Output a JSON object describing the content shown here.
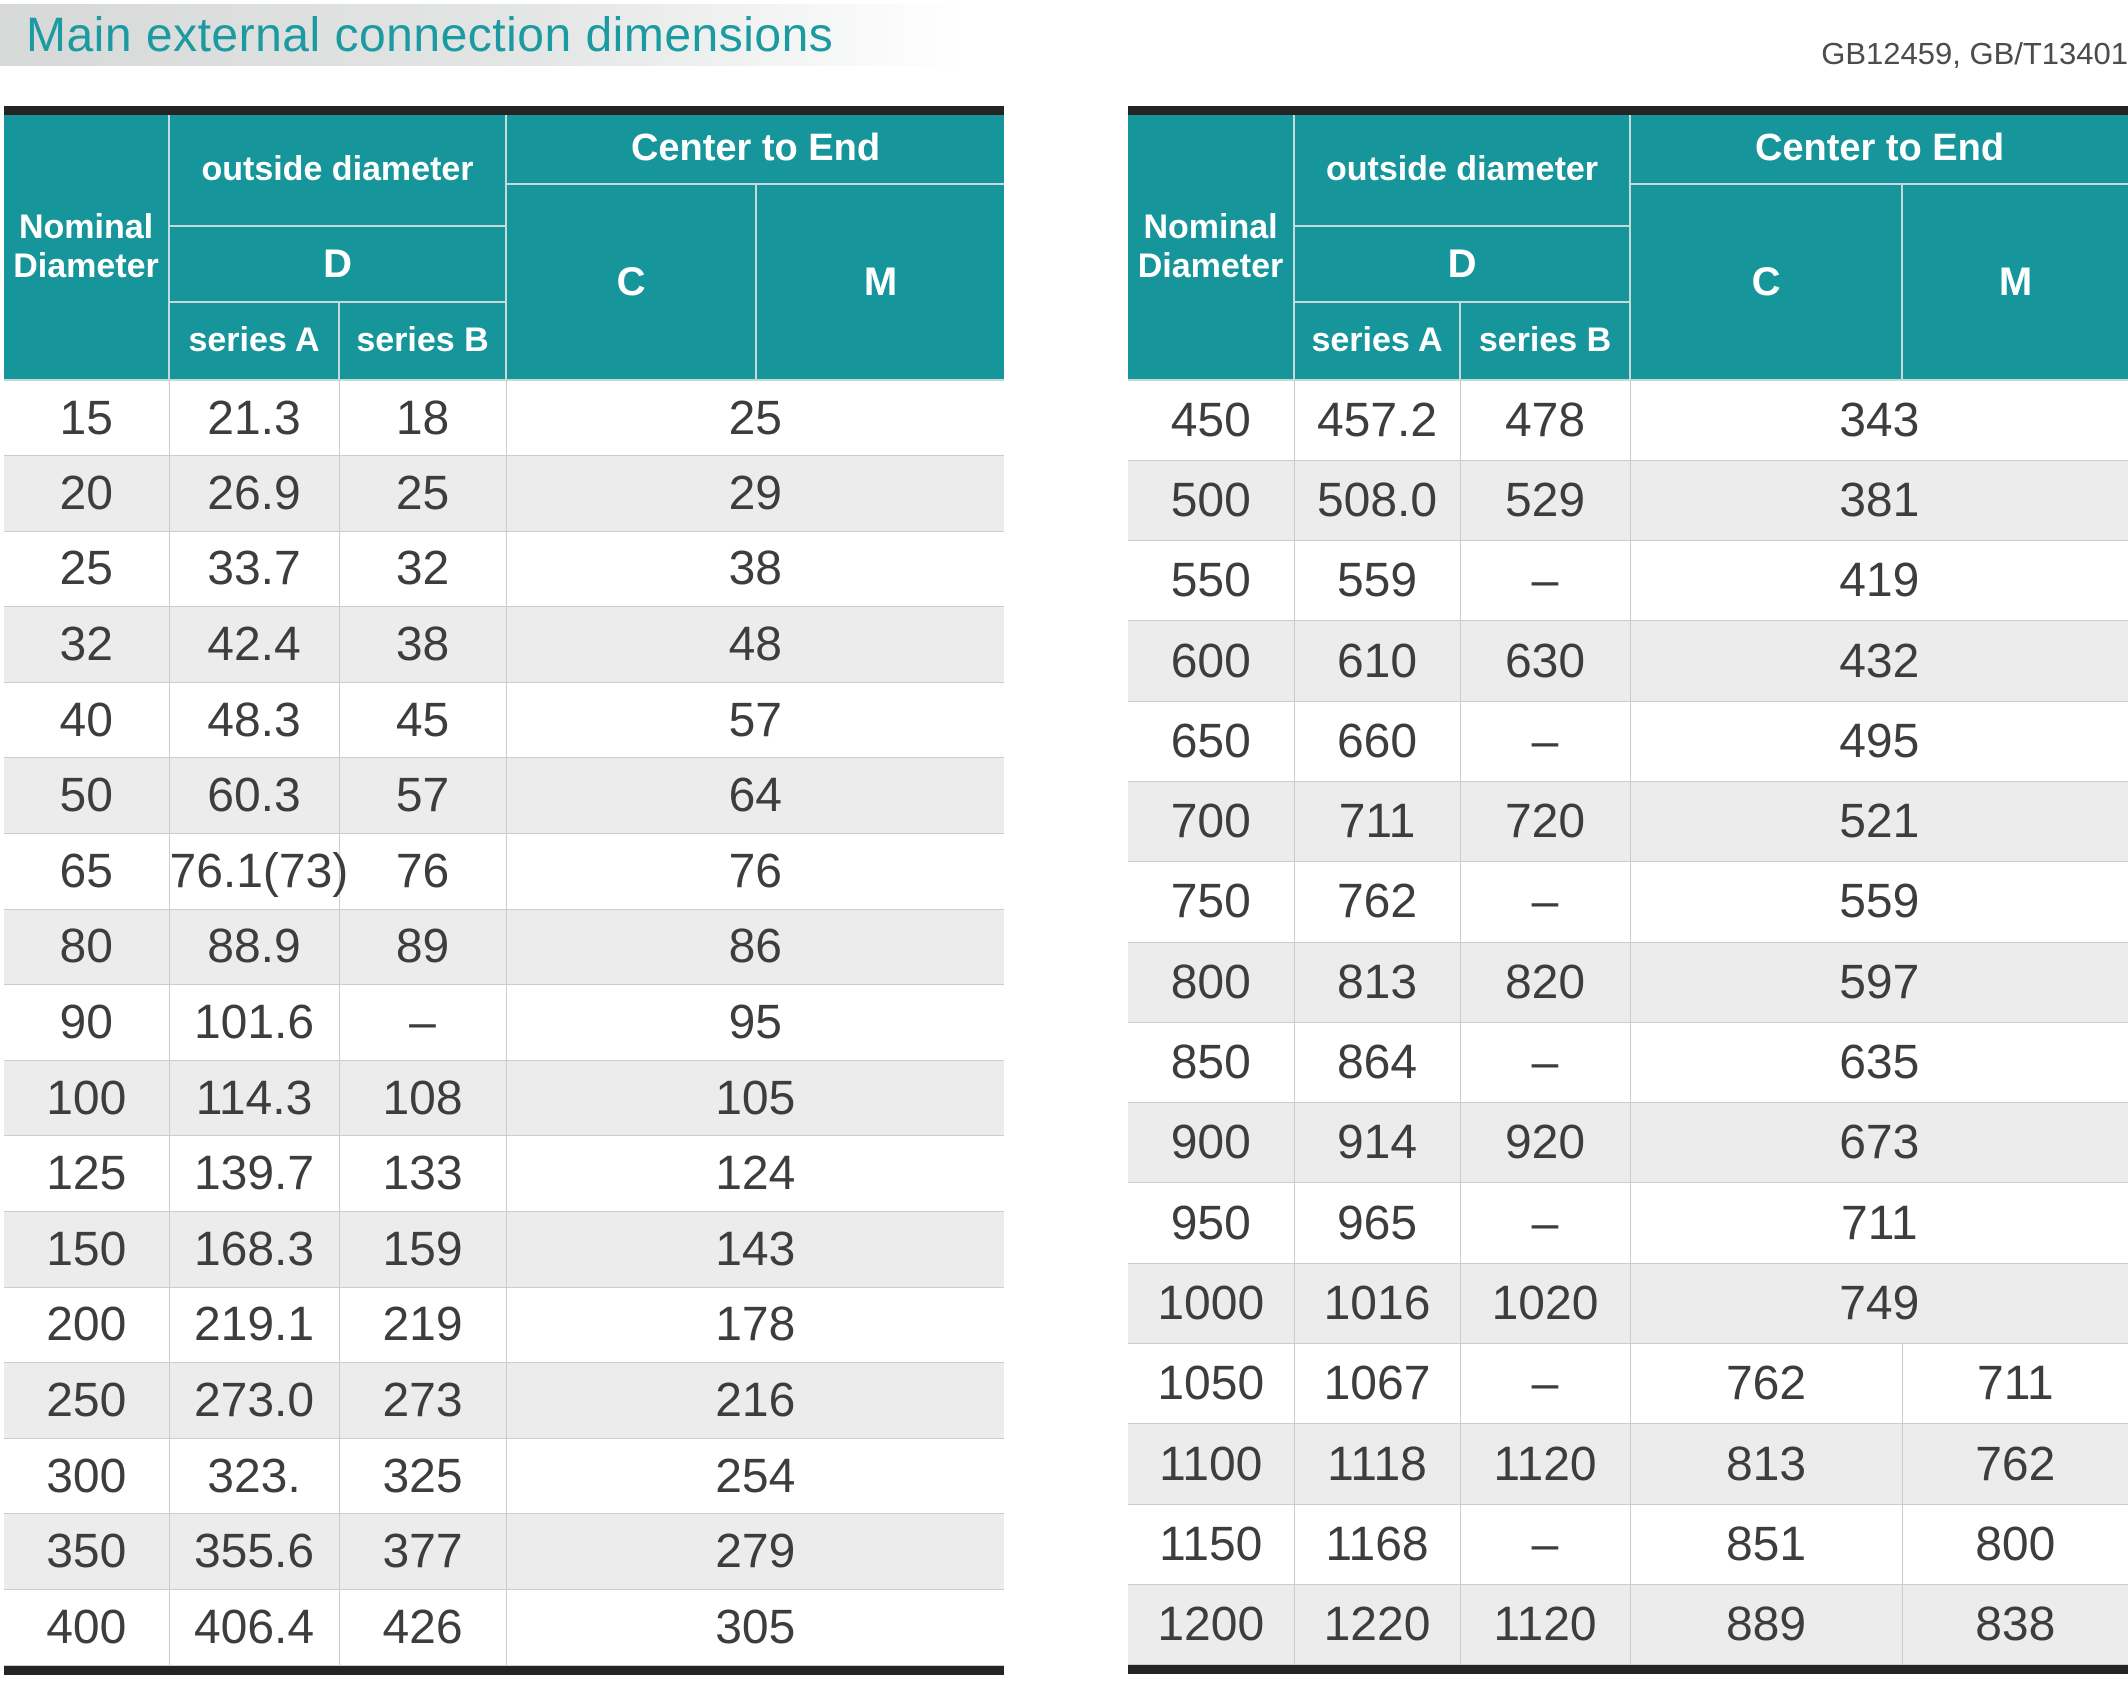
{
  "page": {
    "title": "Main external connection dimensions",
    "standards": "GB12459, GB/T13401"
  },
  "colors": {
    "teal": "#16959b",
    "teal_title": "#1c9aa1",
    "hdr_line": "#c7dadb",
    "dark_border": "#242424",
    "grid_line": "#cccccc",
    "alt_row": "#ececec",
    "text_data": "#3d3d3d",
    "text_std": "#4c4c4c"
  },
  "header": {
    "nominal_diameter": "Nominal Diameter",
    "outside_diameter": "outside diameter",
    "d": "D",
    "series_a": "series A",
    "series_b": "series B",
    "center_to_end": "Center to End",
    "c": "C",
    "m": "M"
  },
  "tables": [
    {
      "name": "left-table",
      "rows": [
        {
          "cells": [
            {
              "text": "15"
            },
            {
              "text": "21.3"
            },
            {
              "text": "18"
            },
            {
              "text": "25",
              "colspan": 2
            }
          ]
        },
        {
          "cells": [
            {
              "text": "20"
            },
            {
              "text": "26.9"
            },
            {
              "text": "25"
            },
            {
              "text": "29",
              "colspan": 2
            }
          ]
        },
        {
          "cells": [
            {
              "text": "25"
            },
            {
              "text": "33.7"
            },
            {
              "text": "32"
            },
            {
              "text": "38",
              "colspan": 2
            }
          ]
        },
        {
          "cells": [
            {
              "text": "32"
            },
            {
              "text": "42.4"
            },
            {
              "text": "38"
            },
            {
              "text": "48",
              "colspan": 2
            }
          ]
        },
        {
          "cells": [
            {
              "text": "40"
            },
            {
              "text": "48.3"
            },
            {
              "text": "45"
            },
            {
              "text": "57",
              "colspan": 2
            }
          ]
        },
        {
          "cells": [
            {
              "text": "50"
            },
            {
              "text": "60.3"
            },
            {
              "text": "57"
            },
            {
              "text": "64",
              "colspan": 2
            }
          ]
        },
        {
          "cells": [
            {
              "text": "65"
            },
            {
              "text": "76.1(73)"
            },
            {
              "text": "76"
            },
            {
              "text": "76",
              "colspan": 2
            }
          ]
        },
        {
          "cells": [
            {
              "text": "80"
            },
            {
              "text": "88.9"
            },
            {
              "text": "89"
            },
            {
              "text": "86",
              "colspan": 2
            }
          ]
        },
        {
          "cells": [
            {
              "text": "90"
            },
            {
              "text": "101.6"
            },
            {
              "text": "–"
            },
            {
              "text": "95",
              "colspan": 2
            }
          ]
        },
        {
          "cells": [
            {
              "text": "100"
            },
            {
              "text": "114.3"
            },
            {
              "text": "108"
            },
            {
              "text": "105",
              "colspan": 2
            }
          ]
        },
        {
          "cells": [
            {
              "text": "125"
            },
            {
              "text": "139.7"
            },
            {
              "text": "133"
            },
            {
              "text": "124",
              "colspan": 2
            }
          ]
        },
        {
          "cells": [
            {
              "text": "150"
            },
            {
              "text": "168.3"
            },
            {
              "text": "159"
            },
            {
              "text": "143",
              "colspan": 2
            }
          ]
        },
        {
          "cells": [
            {
              "text": "200"
            },
            {
              "text": "219.1"
            },
            {
              "text": "219"
            },
            {
              "text": "178",
              "colspan": 2
            }
          ]
        },
        {
          "cells": [
            {
              "text": "250"
            },
            {
              "text": "273.0"
            },
            {
              "text": "273"
            },
            {
              "text": "216",
              "colspan": 2
            }
          ]
        },
        {
          "cells": [
            {
              "text": "300"
            },
            {
              "text": "323."
            },
            {
              "text": "325"
            },
            {
              "text": "254",
              "colspan": 2
            }
          ]
        },
        {
          "cells": [
            {
              "text": "350"
            },
            {
              "text": "355.6"
            },
            {
              "text": "377"
            },
            {
              "text": "279",
              "colspan": 2
            }
          ]
        },
        {
          "cells": [
            {
              "text": "400"
            },
            {
              "text": "406.4"
            },
            {
              "text": "426"
            },
            {
              "text": "305",
              "colspan": 2
            }
          ]
        }
      ]
    },
    {
      "name": "right-table",
      "rows": [
        {
          "cells": [
            {
              "text": "450"
            },
            {
              "text": "457.2"
            },
            {
              "text": "478"
            },
            {
              "text": "343",
              "colspan": 2
            }
          ]
        },
        {
          "cells": [
            {
              "text": "500"
            },
            {
              "text": "508.0"
            },
            {
              "text": "529"
            },
            {
              "text": "381",
              "colspan": 2
            }
          ]
        },
        {
          "cells": [
            {
              "text": "550"
            },
            {
              "text": "559"
            },
            {
              "text": "–"
            },
            {
              "text": "419",
              "colspan": 2
            }
          ]
        },
        {
          "cells": [
            {
              "text": "600"
            },
            {
              "text": "610"
            },
            {
              "text": "630"
            },
            {
              "text": "432",
              "colspan": 2
            }
          ]
        },
        {
          "cells": [
            {
              "text": "650"
            },
            {
              "text": "660"
            },
            {
              "text": "–"
            },
            {
              "text": "495",
              "colspan": 2
            }
          ]
        },
        {
          "cells": [
            {
              "text": "700"
            },
            {
              "text": "711"
            },
            {
              "text": "720"
            },
            {
              "text": "521",
              "colspan": 2
            }
          ]
        },
        {
          "cells": [
            {
              "text": "750"
            },
            {
              "text": "762"
            },
            {
              "text": "–"
            },
            {
              "text": "559",
              "colspan": 2
            }
          ]
        },
        {
          "cells": [
            {
              "text": "800"
            },
            {
              "text": "813"
            },
            {
              "text": "820"
            },
            {
              "text": "597",
              "colspan": 2
            }
          ]
        },
        {
          "cells": [
            {
              "text": "850"
            },
            {
              "text": "864"
            },
            {
              "text": "–"
            },
            {
              "text": "635",
              "colspan": 2
            }
          ]
        },
        {
          "cells": [
            {
              "text": "900"
            },
            {
              "text": "914"
            },
            {
              "text": "920"
            },
            {
              "text": "673",
              "colspan": 2
            }
          ]
        },
        {
          "cells": [
            {
              "text": "950"
            },
            {
              "text": "965"
            },
            {
              "text": "–"
            },
            {
              "text": "711",
              "colspan": 2
            }
          ]
        },
        {
          "cells": [
            {
              "text": "1000"
            },
            {
              "text": "1016"
            },
            {
              "text": "1020"
            },
            {
              "text": "749",
              "colspan": 2
            }
          ]
        },
        {
          "cells": [
            {
              "text": "1050"
            },
            {
              "text": "1067"
            },
            {
              "text": "–"
            },
            {
              "text": "762"
            },
            {
              "text": "711"
            }
          ]
        },
        {
          "cells": [
            {
              "text": "1100"
            },
            {
              "text": "1118"
            },
            {
              "text": "1120"
            },
            {
              "text": "813"
            },
            {
              "text": "762"
            }
          ]
        },
        {
          "cells": [
            {
              "text": "1150"
            },
            {
              "text": "1168"
            },
            {
              "text": "–"
            },
            {
              "text": "851"
            },
            {
              "text": "800"
            }
          ]
        },
        {
          "cells": [
            {
              "text": "1200"
            },
            {
              "text": "1220"
            },
            {
              "text": "1120"
            },
            {
              "text": "889"
            },
            {
              "text": "838"
            }
          ]
        }
      ]
    }
  ]
}
